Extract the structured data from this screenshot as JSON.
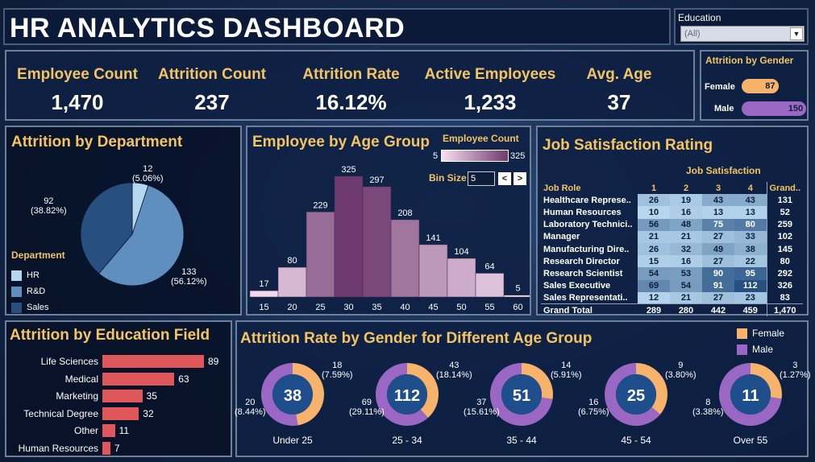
{
  "title": "HR ANALYTICS DASHBOARD",
  "filter": {
    "label": "Education",
    "value": "(All)"
  },
  "kpis": [
    {
      "label": "Employee Count",
      "value": "1,470"
    },
    {
      "label": "Attrition Count",
      "value": "237"
    },
    {
      "label": "Attrition Rate",
      "value": "16.12%"
    },
    {
      "label": "Active Employees",
      "value": "1,233"
    },
    {
      "label": "Avg. Age",
      "value": "37"
    }
  ],
  "gender_attrition": {
    "title": "Attrition by Gender",
    "items": [
      {
        "label": "Female",
        "value": "87",
        "n": 87,
        "color": "#f7b36b"
      },
      {
        "label": "Male",
        "value": "150",
        "n": 150,
        "color": "#9a68c4"
      }
    ]
  },
  "department": {
    "title": "Attrition by Department",
    "legend_title": "Department",
    "slices": [
      {
        "name": "HR",
        "value": 12,
        "label": "12",
        "pct": "(5.06%)",
        "color": "#b4d6ee"
      },
      {
        "name": "R&D",
        "value": 133,
        "label": "133",
        "pct": "(56.12%)",
        "color": "#5f8fbf"
      },
      {
        "name": "Sales",
        "value": 92,
        "label": "92",
        "pct": "(38.82%)",
        "color": "#274f7f"
      }
    ]
  },
  "age_group": {
    "title": "Employee by Age Group",
    "legend_title": "Employee Count",
    "legend_min": "5",
    "legend_max": "325",
    "bin_label": "Bin Size",
    "bin_value": "5",
    "prev_label": "<",
    "next_label": ">"
  },
  "chart_data": {
    "type": "bar",
    "title": "Employee by Age Group",
    "categories": [
      "15",
      "20",
      "25",
      "30",
      "35",
      "40",
      "45",
      "50",
      "55",
      "60"
    ],
    "values": [
      17,
      80,
      229,
      325,
      297,
      208,
      141,
      104,
      64,
      5
    ],
    "ylim": [
      0,
      325
    ]
  },
  "job_satisfaction": {
    "title": "Job Satisfaction Rating",
    "col_group": "Job Satisfaction",
    "role_header": "Job Role",
    "cols": [
      "1",
      "2",
      "3",
      "4"
    ],
    "total_header": "Grand..",
    "rows": [
      {
        "role": "Healthcare Represe..",
        "v": [
          26,
          19,
          43,
          43
        ],
        "t": "131"
      },
      {
        "role": "Human Resources",
        "v": [
          10,
          16,
          13,
          13
        ],
        "t": "52"
      },
      {
        "role": "Laboratory Technici..",
        "v": [
          56,
          48,
          75,
          80
        ],
        "t": "259"
      },
      {
        "role": "Manager",
        "v": [
          21,
          21,
          27,
          33
        ],
        "t": "102"
      },
      {
        "role": "Manufacturing Dire..",
        "v": [
          26,
          32,
          49,
          38
        ],
        "t": "145"
      },
      {
        "role": "Research Director",
        "v": [
          15,
          16,
          27,
          22
        ],
        "t": "80"
      },
      {
        "role": "Research Scientist",
        "v": [
          54,
          53,
          90,
          95
        ],
        "t": "292"
      },
      {
        "role": "Sales Executive",
        "v": [
          69,
          54,
          91,
          112
        ],
        "t": "326"
      },
      {
        "role": "Sales Representati..",
        "v": [
          12,
          21,
          27,
          23
        ],
        "t": "83"
      }
    ],
    "total_row": {
      "label": "Grand Total",
      "v": [
        "289",
        "280",
        "442",
        "459"
      ],
      "t": "1,470"
    }
  },
  "education": {
    "title": "Attrition by Education Field",
    "bars": [
      {
        "label": "Life Sciences",
        "value": 89
      },
      {
        "label": "Medical",
        "value": 63
      },
      {
        "label": "Marketing",
        "value": 35
      },
      {
        "label": "Technical Degree",
        "value": 32
      },
      {
        "label": "Other",
        "value": 11
      },
      {
        "label": "Human Resources",
        "value": 7
      }
    ],
    "color": "#e0575a"
  },
  "age_gender": {
    "title": "Attrition Rate by Gender for Different Age Group",
    "legend": [
      {
        "label": "Female",
        "color": "#f7b36b"
      },
      {
        "label": "Male",
        "color": "#9a68c4"
      }
    ],
    "donuts": [
      {
        "group": "Under 25",
        "total": "38",
        "female": 18,
        "male": 20,
        "f_label": "18",
        "f_pct": "(7.59%)",
        "m_label": "20",
        "m_pct": "(8.44%)"
      },
      {
        "group": "25 - 34",
        "total": "112",
        "female": 43,
        "male": 69,
        "f_label": "43",
        "f_pct": "(18.14%)",
        "m_label": "69",
        "m_pct": "(29.11%)"
      },
      {
        "group": "35 - 44",
        "total": "51",
        "female": 14,
        "male": 37,
        "f_label": "14",
        "f_pct": "(5.91%)",
        "m_label": "37",
        "m_pct": "(15.61%)"
      },
      {
        "group": "45 - 54",
        "total": "25",
        "female": 9,
        "male": 16,
        "f_label": "9",
        "f_pct": "(3.80%)",
        "m_label": "16",
        "m_pct": "(6.75%)"
      },
      {
        "group": "Over 55",
        "total": "11",
        "female": 3,
        "male": 8,
        "f_label": "3",
        "f_pct": "(1.27%)",
        "m_label": "8",
        "m_pct": "(3.38%)"
      }
    ]
  }
}
